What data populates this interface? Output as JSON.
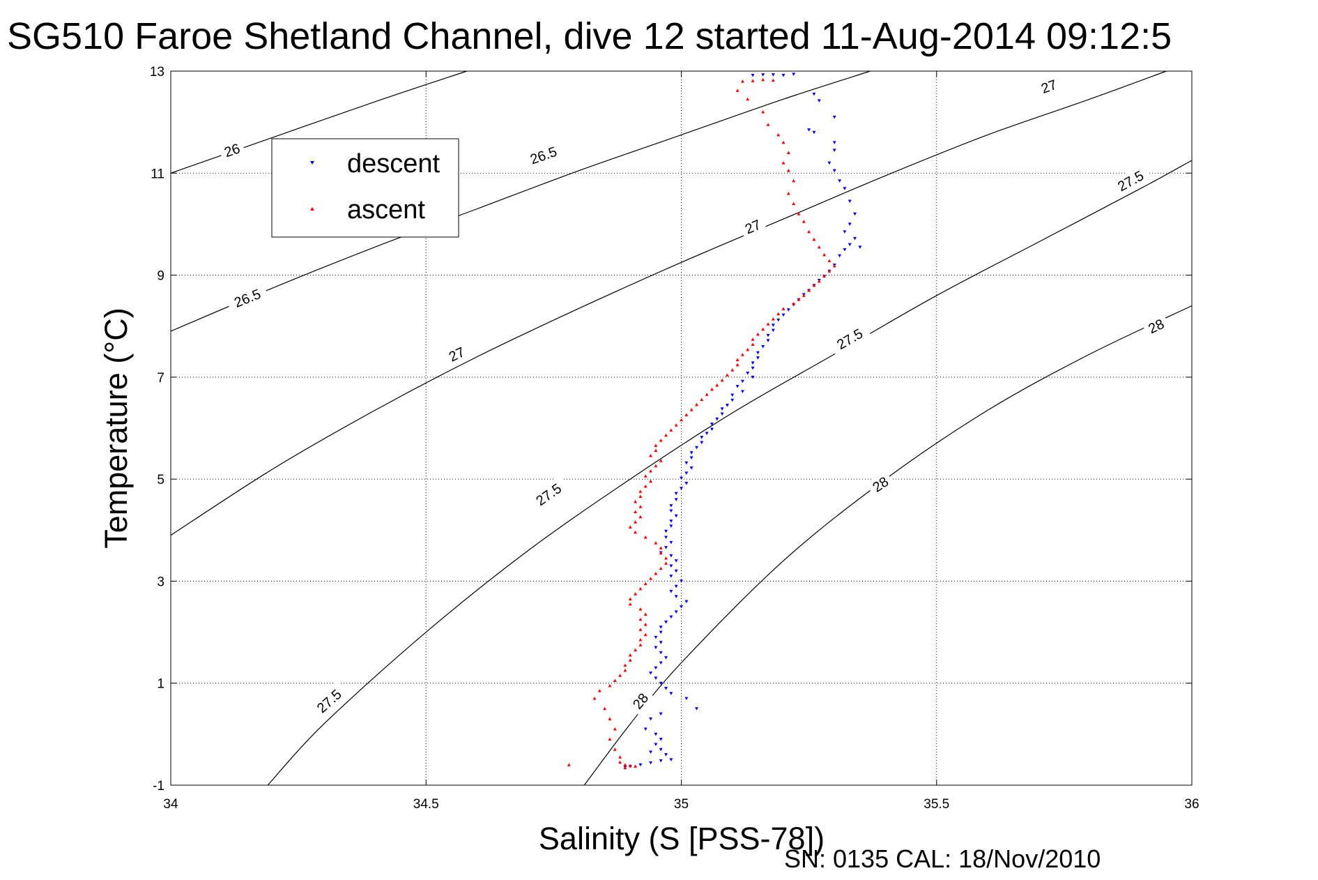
{
  "chart_data": {
    "type": "scatter",
    "title": "SG510 Faroe Shetland Channel, dive 12 started 11-Aug-2014 09:12:5",
    "xlabel": "Salinity (S [PSS-78])",
    "ylabel": "Temperature (°C)",
    "xlim": [
      34,
      36
    ],
    "ylim": [
      -1,
      13
    ],
    "xticks": [
      34,
      34.5,
      35,
      35.5,
      36
    ],
    "yticks": [
      -1,
      1,
      3,
      5,
      7,
      9,
      11,
      13
    ],
    "grid": true,
    "legend_position": "top-left",
    "footnote": "SN: 0135  CAL: 18/Nov/2010",
    "contours": [
      {
        "level": "26",
        "points": [
          [
            34.0,
            11.0
          ],
          [
            34.2,
            11.7
          ],
          [
            34.4,
            12.4
          ],
          [
            34.58,
            13.0
          ]
        ],
        "labels": [
          [
            34.12,
            11.45
          ]
        ]
      },
      {
        "level": "26.5",
        "points": [
          [
            34.0,
            7.9
          ],
          [
            34.2,
            8.75
          ],
          [
            34.4,
            9.55
          ],
          [
            34.6,
            10.3
          ],
          [
            34.8,
            11.05
          ],
          [
            35.0,
            11.75
          ],
          [
            35.2,
            12.45
          ],
          [
            35.37,
            13.0
          ]
        ],
        "labels": [
          [
            34.15,
            8.55
          ],
          [
            34.73,
            11.35
          ]
        ]
      },
      {
        "level": "27",
        "points": [
          [
            34.0,
            3.9
          ],
          [
            34.2,
            5.2
          ],
          [
            34.4,
            6.35
          ],
          [
            34.6,
            7.4
          ],
          [
            34.8,
            8.35
          ],
          [
            35.0,
            9.25
          ],
          [
            35.2,
            10.1
          ],
          [
            35.4,
            10.95
          ],
          [
            35.6,
            11.75
          ],
          [
            35.8,
            12.45
          ],
          [
            35.95,
            13.0
          ]
        ],
        "labels": [
          [
            34.56,
            7.45
          ],
          [
            35.14,
            9.95
          ],
          [
            35.72,
            12.7
          ]
        ]
      },
      {
        "level": "27.5",
        "points": [
          [
            34.19,
            -1.0
          ],
          [
            34.3,
            0.2
          ],
          [
            34.5,
            2.0
          ],
          [
            34.7,
            3.6
          ],
          [
            34.9,
            5.0
          ],
          [
            35.1,
            6.3
          ],
          [
            35.3,
            7.45
          ],
          [
            35.5,
            8.6
          ],
          [
            35.7,
            9.65
          ],
          [
            35.9,
            10.7
          ],
          [
            36.0,
            11.25
          ]
        ],
        "labels": [
          [
            34.31,
            0.65
          ],
          [
            34.74,
            4.7
          ],
          [
            35.33,
            7.75
          ],
          [
            35.88,
            10.85
          ]
        ]
      },
      {
        "level": "28",
        "points": [
          [
            34.81,
            -1.0
          ],
          [
            34.9,
            0.2
          ],
          [
            35.0,
            1.4
          ],
          [
            35.2,
            3.4
          ],
          [
            35.4,
            5.0
          ],
          [
            35.6,
            6.35
          ],
          [
            35.8,
            7.45
          ],
          [
            36.0,
            8.4
          ]
        ],
        "labels": [
          [
            34.92,
            0.65
          ],
          [
            35.39,
            4.9
          ],
          [
            35.93,
            8.0
          ]
        ]
      }
    ],
    "series": [
      {
        "name": "descent",
        "color": "#0000ff",
        "marker": "triangle-down",
        "points": [
          [
            35.22,
            12.94
          ],
          [
            35.2,
            12.92
          ],
          [
            35.18,
            12.93
          ],
          [
            35.16,
            12.93
          ],
          [
            35.14,
            12.92
          ],
          [
            35.26,
            12.55
          ],
          [
            35.27,
            12.42
          ],
          [
            35.25,
            11.85
          ],
          [
            35.26,
            11.8
          ],
          [
            35.3,
            12.1
          ],
          [
            35.3,
            11.6
          ],
          [
            35.3,
            11.45
          ],
          [
            35.29,
            11.2
          ],
          [
            35.3,
            11.05
          ],
          [
            35.31,
            10.85
          ],
          [
            35.32,
            10.7
          ],
          [
            35.33,
            10.45
          ],
          [
            35.34,
            10.2
          ],
          [
            35.33,
            10.0
          ],
          [
            35.32,
            9.85
          ],
          [
            35.34,
            9.72
          ],
          [
            35.33,
            9.6
          ],
          [
            35.35,
            9.55
          ],
          [
            35.32,
            9.5
          ],
          [
            35.31,
            9.38
          ],
          [
            35.3,
            9.2
          ],
          [
            35.29,
            9.08
          ],
          [
            35.28,
            8.98
          ],
          [
            35.27,
            8.9
          ],
          [
            35.26,
            8.8
          ],
          [
            35.25,
            8.7
          ],
          [
            35.24,
            8.62
          ],
          [
            35.23,
            8.52
          ],
          [
            35.22,
            8.42
          ],
          [
            35.21,
            8.32
          ],
          [
            35.2,
            8.22
          ],
          [
            35.19,
            8.12
          ],
          [
            35.18,
            8.02
          ],
          [
            35.18,
            7.92
          ],
          [
            35.17,
            7.82
          ],
          [
            35.17,
            7.72
          ],
          [
            35.16,
            7.6
          ],
          [
            35.15,
            7.48
          ],
          [
            35.15,
            7.38
          ],
          [
            35.14,
            7.28
          ],
          [
            35.14,
            7.18
          ],
          [
            35.13,
            7.08
          ],
          [
            35.14,
            7.0
          ],
          [
            35.12,
            6.92
          ],
          [
            35.11,
            6.82
          ],
          [
            35.12,
            6.72
          ],
          [
            35.1,
            6.65
          ],
          [
            35.1,
            6.55
          ],
          [
            35.09,
            6.45
          ],
          [
            35.08,
            6.38
          ],
          [
            35.08,
            6.28
          ],
          [
            35.07,
            6.18
          ],
          [
            35.06,
            6.08
          ],
          [
            35.06,
            5.98
          ],
          [
            35.05,
            5.9
          ],
          [
            35.04,
            5.82
          ],
          [
            35.04,
            5.72
          ],
          [
            35.03,
            5.62
          ],
          [
            35.02,
            5.52
          ],
          [
            35.02,
            5.42
          ],
          [
            35.01,
            5.32
          ],
          [
            35.02,
            5.22
          ],
          [
            35.01,
            5.12
          ],
          [
            35.0,
            5.02
          ],
          [
            35.01,
            4.92
          ],
          [
            35.0,
            4.82
          ],
          [
            34.99,
            4.72
          ],
          [
            34.99,
            4.6
          ],
          [
            34.98,
            4.48
          ],
          [
            34.98,
            4.38
          ],
          [
            34.99,
            4.28
          ],
          [
            34.98,
            4.18
          ],
          [
            34.98,
            4.08
          ],
          [
            34.97,
            3.98
          ],
          [
            34.97,
            3.86
          ],
          [
            34.98,
            3.76
          ],
          [
            34.97,
            3.66
          ],
          [
            34.96,
            3.56
          ],
          [
            34.98,
            3.5
          ],
          [
            34.99,
            3.4
          ],
          [
            34.98,
            3.3
          ],
          [
            34.99,
            3.2
          ],
          [
            34.98,
            3.1
          ],
          [
            35.0,
            3.0
          ],
          [
            34.99,
            2.9
          ],
          [
            34.98,
            2.8
          ],
          [
            34.99,
            2.7
          ],
          [
            35.01,
            2.6
          ],
          [
            35.0,
            2.5
          ],
          [
            34.99,
            2.4
          ],
          [
            34.98,
            2.3
          ],
          [
            34.97,
            2.2
          ],
          [
            34.96,
            2.1
          ],
          [
            34.96,
            2.0
          ],
          [
            34.95,
            1.9
          ],
          [
            34.96,
            1.8
          ],
          [
            34.95,
            1.7
          ],
          [
            34.96,
            1.6
          ],
          [
            34.97,
            1.5
          ],
          [
            34.96,
            1.4
          ],
          [
            34.95,
            1.3
          ],
          [
            34.94,
            1.2
          ],
          [
            34.95,
            1.1
          ],
          [
            34.96,
            1.0
          ],
          [
            34.97,
            0.9
          ],
          [
            34.98,
            0.8
          ],
          [
            35.01,
            0.7
          ],
          [
            35.03,
            0.5
          ],
          [
            34.96,
            0.4
          ],
          [
            34.94,
            0.3
          ],
          [
            34.93,
            0.1
          ],
          [
            34.95,
            0.0
          ],
          [
            34.96,
            -0.1
          ],
          [
            34.95,
            -0.2
          ],
          [
            34.96,
            -0.3
          ],
          [
            34.94,
            -0.35
          ],
          [
            34.97,
            -0.4
          ],
          [
            34.98,
            -0.5
          ],
          [
            34.96,
            -0.52
          ],
          [
            34.94,
            -0.56
          ],
          [
            34.92,
            -0.6
          ],
          [
            34.9,
            -0.63
          ],
          [
            34.89,
            -0.65
          ]
        ]
      },
      {
        "name": "ascent",
        "color": "#ff0000",
        "marker": "triangle-up",
        "points": [
          [
            35.18,
            12.82
          ],
          [
            35.16,
            12.83
          ],
          [
            35.14,
            12.81
          ],
          [
            35.12,
            12.8
          ],
          [
            35.11,
            12.62
          ],
          [
            35.13,
            12.45
          ],
          [
            35.16,
            12.2
          ],
          [
            35.17,
            11.95
          ],
          [
            35.19,
            11.75
          ],
          [
            35.2,
            11.6
          ],
          [
            35.21,
            11.4
          ],
          [
            35.2,
            11.2
          ],
          [
            35.21,
            11.05
          ],
          [
            35.22,
            10.85
          ],
          [
            35.21,
            10.6
          ],
          [
            35.22,
            10.4
          ],
          [
            35.23,
            10.2
          ],
          [
            35.24,
            10.05
          ],
          [
            35.25,
            9.85
          ],
          [
            35.26,
            9.7
          ],
          [
            35.27,
            9.55
          ],
          [
            35.28,
            9.4
          ],
          [
            35.29,
            9.28
          ],
          [
            35.3,
            9.18
          ],
          [
            35.29,
            9.08
          ],
          [
            35.28,
            8.98
          ],
          [
            35.27,
            8.88
          ],
          [
            35.26,
            8.8
          ],
          [
            35.25,
            8.7
          ],
          [
            35.24,
            8.6
          ],
          [
            35.23,
            8.52
          ],
          [
            35.22,
            8.44
          ],
          [
            35.2,
            8.34
          ],
          [
            35.19,
            8.24
          ],
          [
            35.18,
            8.14
          ],
          [
            35.17,
            8.04
          ],
          [
            35.16,
            7.94
          ],
          [
            35.15,
            7.84
          ],
          [
            35.14,
            7.74
          ],
          [
            35.14,
            7.64
          ],
          [
            35.13,
            7.54
          ],
          [
            35.12,
            7.44
          ],
          [
            35.11,
            7.34
          ],
          [
            35.11,
            7.24
          ],
          [
            35.1,
            7.14
          ],
          [
            35.09,
            7.04
          ],
          [
            35.08,
            6.94
          ],
          [
            35.07,
            6.84
          ],
          [
            35.06,
            6.76
          ],
          [
            35.05,
            6.66
          ],
          [
            35.04,
            6.56
          ],
          [
            35.03,
            6.46
          ],
          [
            35.02,
            6.36
          ],
          [
            35.01,
            6.26
          ],
          [
            35.0,
            6.16
          ],
          [
            34.99,
            6.06
          ],
          [
            34.98,
            5.96
          ],
          [
            34.97,
            5.86
          ],
          [
            34.96,
            5.76
          ],
          [
            34.95,
            5.66
          ],
          [
            34.95,
            5.56
          ],
          [
            34.94,
            5.46
          ],
          [
            34.96,
            5.36
          ],
          [
            34.95,
            5.26
          ],
          [
            34.94,
            5.16
          ],
          [
            34.93,
            5.06
          ],
          [
            34.94,
            4.96
          ],
          [
            34.93,
            4.86
          ],
          [
            34.92,
            4.76
          ],
          [
            34.92,
            4.66
          ],
          [
            34.91,
            4.56
          ],
          [
            34.92,
            4.46
          ],
          [
            34.91,
            4.36
          ],
          [
            34.92,
            4.26
          ],
          [
            34.91,
            4.16
          ],
          [
            34.9,
            4.06
          ],
          [
            34.91,
            3.96
          ],
          [
            34.93,
            3.86
          ],
          [
            34.95,
            3.75
          ],
          [
            34.96,
            3.65
          ],
          [
            34.96,
            3.55
          ],
          [
            34.97,
            3.45
          ],
          [
            34.97,
            3.35
          ],
          [
            34.96,
            3.25
          ],
          [
            34.95,
            3.15
          ],
          [
            34.94,
            3.05
          ],
          [
            34.93,
            2.95
          ],
          [
            34.92,
            2.85
          ],
          [
            34.91,
            2.75
          ],
          [
            34.9,
            2.65
          ],
          [
            34.9,
            2.55
          ],
          [
            34.92,
            2.45
          ],
          [
            34.93,
            2.35
          ],
          [
            34.92,
            2.25
          ],
          [
            34.93,
            2.15
          ],
          [
            34.92,
            2.05
          ],
          [
            34.93,
            1.95
          ],
          [
            34.92,
            1.85
          ],
          [
            34.92,
            1.75
          ],
          [
            34.91,
            1.65
          ],
          [
            34.9,
            1.55
          ],
          [
            34.9,
            1.45
          ],
          [
            34.89,
            1.35
          ],
          [
            34.89,
            1.25
          ],
          [
            34.88,
            1.15
          ],
          [
            34.87,
            1.05
          ],
          [
            34.86,
            0.95
          ],
          [
            34.84,
            0.85
          ],
          [
            34.83,
            0.7
          ],
          [
            34.85,
            0.5
          ],
          [
            34.86,
            0.3
          ],
          [
            34.87,
            0.1
          ],
          [
            34.86,
            -0.1
          ],
          [
            34.87,
            -0.3
          ],
          [
            34.88,
            -0.45
          ],
          [
            34.88,
            -0.55
          ],
          [
            34.89,
            -0.6
          ],
          [
            34.9,
            -0.62
          ],
          [
            34.91,
            -0.63
          ],
          [
            34.89,
            -0.66
          ],
          [
            34.78,
            -0.6
          ]
        ]
      }
    ]
  }
}
